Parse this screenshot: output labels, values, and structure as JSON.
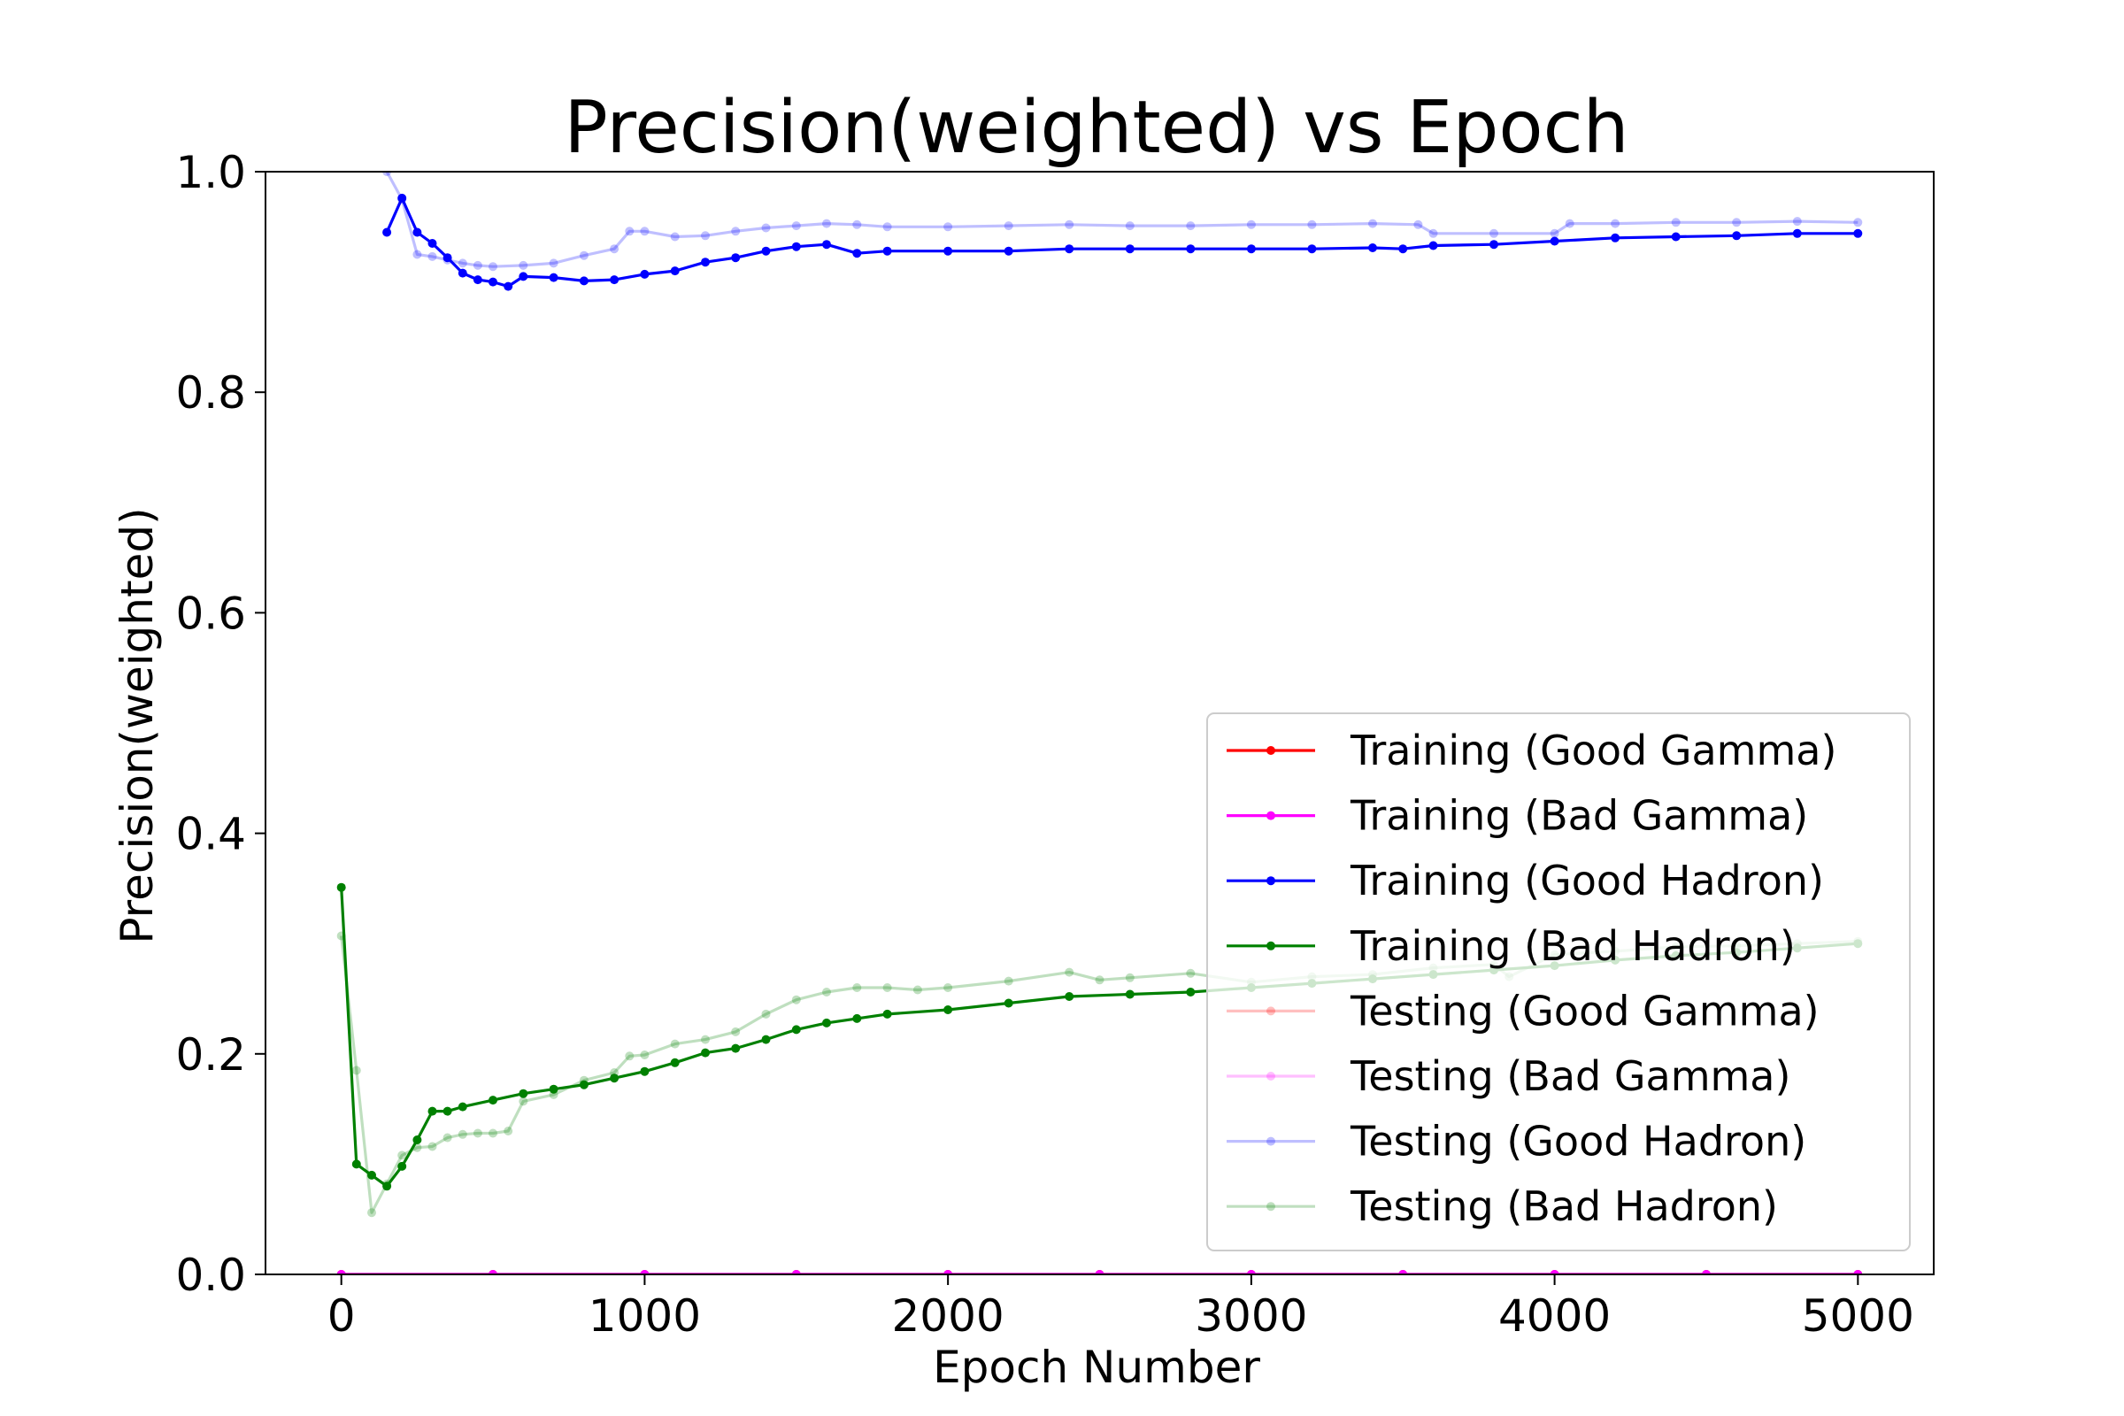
{
  "chart_data": {
    "type": "line",
    "title": "Precision(weighted) vs Epoch",
    "xlabel": "Epoch Number",
    "ylabel": "Precision(weighted)",
    "xlim": [
      -250,
      5250
    ],
    "ylim": [
      0.0,
      1.0
    ],
    "xticks": [
      0,
      1000,
      2000,
      3000,
      4000,
      5000
    ],
    "yticks": [
      0.0,
      0.2,
      0.4,
      0.6,
      0.8,
      1.0
    ],
    "xtick_labels": [
      "0",
      "1000",
      "2000",
      "3000",
      "4000",
      "5000"
    ],
    "ytick_labels": [
      "0.0",
      "0.2",
      "0.4",
      "0.6",
      "0.8",
      "1.0"
    ],
    "grid": false,
    "legend_position": "lower-right",
    "series": [
      {
        "name": "Training (Good Gamma)",
        "color": "#ff0000",
        "alpha": 1.0,
        "x": [
          0,
          500,
          1000,
          1500,
          2000,
          2500,
          3000,
          3500,
          4000,
          4500,
          5000
        ],
        "y": [
          0,
          0,
          0,
          0,
          0,
          0,
          0,
          0,
          0,
          0,
          0
        ]
      },
      {
        "name": "Training (Bad Gamma)",
        "color": "#ff00ff",
        "alpha": 1.0,
        "x": [
          0,
          500,
          1000,
          1500,
          2000,
          2500,
          3000,
          3500,
          4000,
          4500,
          5000
        ],
        "y": [
          0,
          0,
          0,
          0,
          0,
          0,
          0,
          0,
          0,
          0,
          0
        ]
      },
      {
        "name": "Training (Good Hadron)",
        "color": "#0000ff",
        "alpha": 1.0,
        "x": [
          150,
          200,
          250,
          300,
          350,
          400,
          450,
          500,
          550,
          600,
          700,
          800,
          900,
          1000,
          1100,
          1200,
          1300,
          1400,
          1500,
          1600,
          1700,
          1800,
          2000,
          2200,
          2400,
          2600,
          2800,
          3000,
          3200,
          3400,
          3500,
          3600,
          3800,
          4000,
          4200,
          4400,
          4600,
          4800,
          5000
        ],
        "y": [
          0.945,
          0.976,
          0.945,
          0.935,
          0.922,
          0.908,
          0.902,
          0.9,
          0.896,
          0.905,
          0.904,
          0.901,
          0.902,
          0.907,
          0.91,
          0.918,
          0.922,
          0.928,
          0.932,
          0.934,
          0.926,
          0.928,
          0.928,
          0.928,
          0.93,
          0.93,
          0.93,
          0.93,
          0.93,
          0.931,
          0.93,
          0.933,
          0.934,
          0.937,
          0.94,
          0.941,
          0.942,
          0.944,
          0.944
        ]
      },
      {
        "name": "Training (Bad Hadron)",
        "color": "#008000",
        "alpha": 1.0,
        "x": [
          0,
          50,
          100,
          150,
          200,
          250,
          300,
          350,
          400,
          500,
          600,
          700,
          800,
          900,
          1000,
          1100,
          1200,
          1300,
          1400,
          1500,
          1600,
          1700,
          1800,
          2000,
          2200,
          2400,
          2600,
          2800,
          3000,
          3200,
          3400,
          3600,
          3800,
          4000,
          4200,
          4400,
          4600,
          4800,
          5000
        ],
        "y": [
          0.351,
          0.1,
          0.09,
          0.08,
          0.098,
          0.122,
          0.148,
          0.148,
          0.152,
          0.158,
          0.164,
          0.168,
          0.172,
          0.178,
          0.184,
          0.192,
          0.201,
          0.205,
          0.213,
          0.222,
          0.228,
          0.232,
          0.236,
          0.24,
          0.246,
          0.252,
          0.254,
          0.256,
          0.26,
          0.264,
          0.268,
          0.272,
          0.276,
          0.28,
          0.285,
          0.289,
          0.292,
          0.296,
          0.3
        ]
      },
      {
        "name": "Testing (Good Gamma)",
        "color": "#ff0000",
        "alpha": 0.25,
        "x": [
          0,
          500,
          1000,
          1500,
          2000,
          2500,
          3000,
          3500,
          4000,
          4500,
          5000
        ],
        "y": [
          0,
          0,
          0,
          0,
          0,
          0,
          0,
          0,
          0,
          0,
          0
        ]
      },
      {
        "name": "Testing (Bad Gamma)",
        "color": "#ff00ff",
        "alpha": 0.25,
        "x": [
          0,
          500,
          1000,
          1500,
          2000,
          2500,
          3000,
          3500,
          4000,
          4500,
          5000
        ],
        "y": [
          0,
          0,
          0,
          0,
          0,
          0,
          0,
          0,
          0,
          0,
          0
        ]
      },
      {
        "name": "Testing (Good Hadron)",
        "color": "#0000ff",
        "alpha": 0.25,
        "x": [
          150,
          200,
          250,
          300,
          350,
          400,
          450,
          500,
          600,
          700,
          800,
          900,
          950,
          1000,
          1100,
          1200,
          1300,
          1400,
          1500,
          1600,
          1700,
          1800,
          2000,
          2200,
          2400,
          2600,
          2800,
          3000,
          3200,
          3400,
          3550,
          3600,
          3800,
          4000,
          4050,
          4200,
          4400,
          4600,
          4800,
          5000
        ],
        "y": [
          1.0,
          0.975,
          0.925,
          0.923,
          0.92,
          0.917,
          0.915,
          0.914,
          0.915,
          0.917,
          0.924,
          0.93,
          0.946,
          0.946,
          0.941,
          0.942,
          0.946,
          0.949,
          0.951,
          0.953,
          0.952,
          0.95,
          0.95,
          0.951,
          0.952,
          0.951,
          0.951,
          0.952,
          0.952,
          0.953,
          0.952,
          0.944,
          0.944,
          0.944,
          0.953,
          0.953,
          0.954,
          0.954,
          0.955,
          0.954
        ]
      },
      {
        "name": "Testing (Bad Hadron)",
        "color": "#008000",
        "alpha": 0.25,
        "x": [
          0,
          50,
          100,
          150,
          200,
          250,
          300,
          350,
          400,
          450,
          500,
          550,
          600,
          700,
          800,
          900,
          950,
          1000,
          1100,
          1200,
          1300,
          1400,
          1500,
          1600,
          1700,
          1800,
          1900,
          2000,
          2200,
          2400,
          2500,
          2600,
          2800,
          3000,
          3200,
          3400,
          3600,
          3800,
          3850,
          4000,
          4200,
          4400,
          4600,
          4800,
          5000
        ],
        "y": [
          0.307,
          0.185,
          0.056,
          0.082,
          0.108,
          0.115,
          0.116,
          0.124,
          0.127,
          0.128,
          0.128,
          0.13,
          0.157,
          0.163,
          0.176,
          0.183,
          0.198,
          0.199,
          0.209,
          0.213,
          0.22,
          0.236,
          0.249,
          0.256,
          0.26,
          0.26,
          0.258,
          0.26,
          0.266,
          0.274,
          0.267,
          0.269,
          0.273,
          0.265,
          0.27,
          0.272,
          0.278,
          0.281,
          0.27,
          0.29,
          0.293,
          0.297,
          0.298,
          0.3,
          0.302
        ]
      }
    ]
  }
}
